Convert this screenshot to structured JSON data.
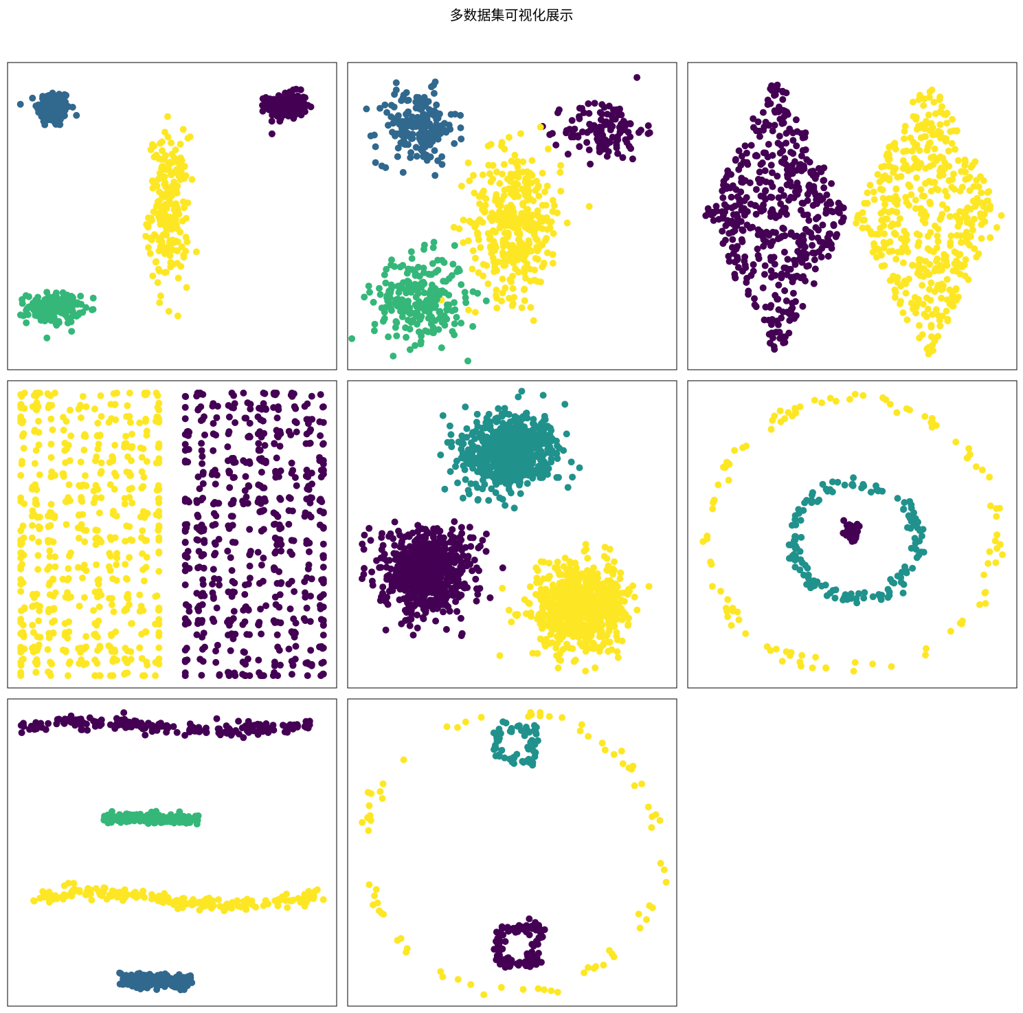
{
  "figure": {
    "title": "多数据集可视化展示"
  },
  "colors": {
    "purple": "#440154",
    "blue": "#31688e",
    "teal": "#21918c",
    "green": "#35b779",
    "yellow": "#fde725"
  },
  "chart_data": [
    {
      "type": "scatter",
      "name": "",
      "xlim": [
        0,
        100
      ],
      "ylim": [
        0,
        100
      ],
      "grid": false,
      "ticks": false,
      "clusters": [
        {
          "shape": "gaussian",
          "cx": 14,
          "cy": 85,
          "sx": 2.5,
          "sy": 3,
          "n": 160,
          "color": "blue"
        },
        {
          "shape": "gaussian",
          "cx": 85,
          "cy": 86,
          "sx": 3,
          "sy": 2.2,
          "n": 160,
          "color": "purple"
        },
        {
          "shape": "gaussian",
          "cx": 49,
          "cy": 52,
          "sx": 3,
          "sy": 12,
          "n": 220,
          "color": "yellow"
        },
        {
          "shape": "gaussian",
          "cx": 14,
          "cy": 20,
          "sx": 4,
          "sy": 2.5,
          "n": 160,
          "color": "green"
        }
      ]
    },
    {
      "type": "scatter",
      "name": "",
      "xlim": [
        0,
        100
      ],
      "ylim": [
        0,
        100
      ],
      "grid": false,
      "ticks": false,
      "clusters": [
        {
          "shape": "gaussian",
          "cx": 21,
          "cy": 79,
          "sx": 6,
          "sy": 6,
          "n": 180,
          "color": "blue"
        },
        {
          "shape": "gaussian",
          "cx": 78,
          "cy": 78,
          "sx": 6,
          "sy": 5,
          "n": 120,
          "color": "purple"
        },
        {
          "shape": "gaussian",
          "cx": 51,
          "cy": 48,
          "sx": 7,
          "sy": 12,
          "n": 350,
          "color": "yellow"
        },
        {
          "shape": "gaussian",
          "cx": 22,
          "cy": 23,
          "sx": 7,
          "sy": 7,
          "n": 250,
          "color": "green"
        }
      ]
    },
    {
      "type": "scatter",
      "name": "",
      "xlim": [
        0,
        100
      ],
      "ylim": [
        0,
        100
      ],
      "grid": false,
      "ticks": false,
      "clusters": [
        {
          "shape": "diamond",
          "cx": 27,
          "cy": 50,
          "hw": 22,
          "hh": 47,
          "n": 480,
          "color": "purple"
        },
        {
          "shape": "diamond",
          "cx": 73,
          "cy": 50,
          "hw": 23,
          "hh": 47,
          "n": 480,
          "color": "yellow"
        }
      ]
    },
    {
      "type": "scatter",
      "name": "",
      "xlim": [
        0,
        100
      ],
      "ylim": [
        0,
        100
      ],
      "grid": false,
      "ticks": false,
      "clusters": [
        {
          "shape": "grid",
          "x0": 4,
          "x1": 46,
          "y0": 4,
          "y1": 96,
          "n": 560,
          "color": "yellow"
        },
        {
          "shape": "grid",
          "x0": 54,
          "x1": 96,
          "y0": 4,
          "y1": 96,
          "n": 560,
          "color": "purple"
        }
      ]
    },
    {
      "type": "scatter",
      "name": "",
      "xlim": [
        0,
        100
      ],
      "ylim": [
        0,
        100
      ],
      "grid": false,
      "ticks": false,
      "clusters": [
        {
          "shape": "gaussian",
          "cx": 49,
          "cy": 77,
          "sx": 7,
          "sy": 6,
          "n": 700,
          "color": "teal"
        },
        {
          "shape": "gaussian",
          "cx": 24,
          "cy": 38,
          "sx": 7,
          "sy": 6.5,
          "n": 700,
          "color": "purple"
        },
        {
          "shape": "gaussian",
          "cx": 71,
          "cy": 26,
          "sx": 7,
          "sy": 7,
          "n": 700,
          "color": "yellow"
        }
      ]
    },
    {
      "type": "scatter",
      "name": "",
      "xlim": [
        0,
        100
      ],
      "ylim": [
        0,
        100
      ],
      "grid": false,
      "ticks": false,
      "clusters": [
        {
          "shape": "ring",
          "cx": 50,
          "cy": 50,
          "r": 44,
          "jitter": 1.2,
          "n": 110,
          "color": "yellow"
        },
        {
          "shape": "ring",
          "cx": 51,
          "cy": 48,
          "r": 19,
          "jitter": 1.2,
          "n": 150,
          "color": "teal"
        },
        {
          "shape": "gaussian",
          "cx": 50,
          "cy": 51,
          "sx": 1,
          "sy": 1.5,
          "n": 40,
          "color": "purple"
        }
      ]
    },
    {
      "type": "scatter",
      "name": "",
      "xlim": [
        0,
        100
      ],
      "ylim": [
        0,
        100
      ],
      "grid": false,
      "ticks": false,
      "clusters": [
        {
          "shape": "band",
          "x0": 4,
          "x1": 92,
          "y": 91,
          "amp": 1.2,
          "sy": 1,
          "n": 200,
          "color": "purple"
        },
        {
          "shape": "band",
          "x0": 29,
          "x1": 58,
          "y": 61,
          "amp": 0.4,
          "sy": 0.8,
          "n": 200,
          "color": "green"
        },
        {
          "shape": "band",
          "x0": 7,
          "x1": 96,
          "y": 35,
          "amp": 2.2,
          "sy": 1,
          "n": 200,
          "color": "yellow"
        },
        {
          "shape": "band",
          "x0": 34,
          "x1": 56,
          "y": 8,
          "amp": 0.2,
          "sy": 1,
          "n": 200,
          "color": "blue"
        }
      ]
    },
    {
      "type": "scatter",
      "name": "",
      "xlim": [
        0,
        100
      ],
      "ylim": [
        0,
        100
      ],
      "grid": false,
      "ticks": false,
      "clusters": [
        {
          "shape": "ring",
          "cx": 50,
          "cy": 50,
          "r": 45,
          "jitter": 1.0,
          "n": 80,
          "color": "yellow"
        },
        {
          "shape": "square",
          "cx": 51,
          "cy": 85,
          "hw": 5,
          "hh": 5,
          "n": 70,
          "color": "teal"
        },
        {
          "shape": "square",
          "cx": 52,
          "cy": 20,
          "hw": 5.5,
          "hh": 5.5,
          "n": 110,
          "color": "purple"
        }
      ]
    }
  ]
}
